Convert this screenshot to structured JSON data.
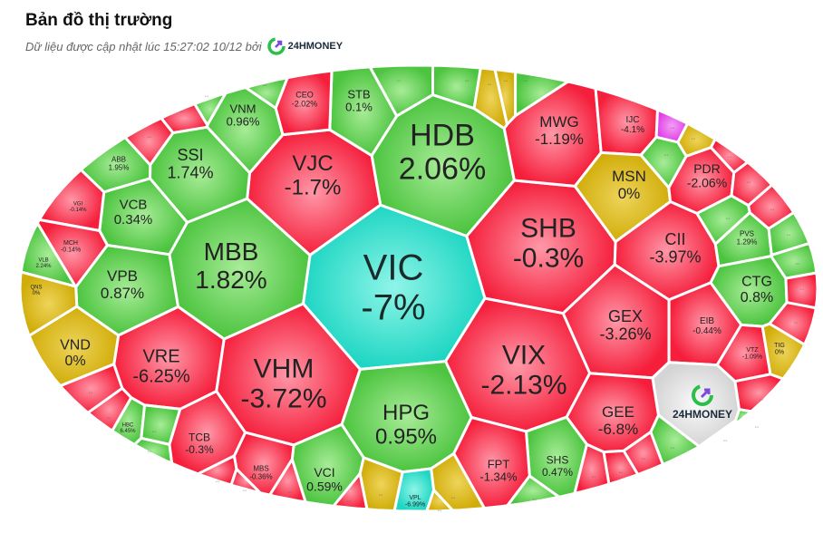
{
  "header": {
    "title": "Bản đồ thị trường",
    "updated_text": "Dữ liệu được cập nhật lúc 15:27:02 10/12 bởi",
    "brand": "24HMONEY"
  },
  "colors": {
    "up": "#4cc43f",
    "down": "#f51f3c",
    "flat": "#d1ad0a",
    "floor": "#1fd6c3",
    "ceiling": "#e03ce6",
    "brand": "#dddddd"
  },
  "cells": [
    {
      "ticker": "VIC",
      "change": "-7%",
      "color": "floor"
    },
    {
      "ticker": "HDB",
      "change": "2.06%",
      "color": "up"
    },
    {
      "ticker": "SHB",
      "change": "-0.3%",
      "color": "down"
    },
    {
      "ticker": "VIX",
      "change": "-2.13%",
      "color": "down"
    },
    {
      "ticker": "HPG",
      "change": "0.95%",
      "color": "up"
    },
    {
      "ticker": "VHM",
      "change": "-3.72%",
      "color": "down"
    },
    {
      "ticker": "MBB",
      "change": "1.82%",
      "color": "up"
    },
    {
      "ticker": "VJC",
      "change": "-1.7%",
      "color": "down"
    },
    {
      "ticker": "SSI",
      "change": "1.74%",
      "color": "up"
    },
    {
      "ticker": "VNM",
      "change": "0.96%",
      "color": "up"
    },
    {
      "ticker": "STB",
      "change": "0.1%",
      "color": "up"
    },
    {
      "ticker": "CEO",
      "change": "-2.02%",
      "color": "down"
    },
    {
      "ticker": "MWG",
      "change": "-1.19%",
      "color": "down"
    },
    {
      "ticker": "IJC",
      "change": "-4.1%",
      "color": "down"
    },
    {
      "ticker": "MSN",
      "change": "0%",
      "color": "flat"
    },
    {
      "ticker": "PDR",
      "change": "-2.06%",
      "color": "down"
    },
    {
      "ticker": "CII",
      "change": "-3.97%",
      "color": "down"
    },
    {
      "ticker": "PVS",
      "change": "1.29%",
      "color": "up"
    },
    {
      "ticker": "CTG",
      "change": "0.8%",
      "color": "up"
    },
    {
      "ticker": "GEX",
      "change": "-3.26%",
      "color": "down"
    },
    {
      "ticker": "EIB",
      "change": "-0.44%",
      "color": "down"
    },
    {
      "ticker": "VTZ",
      "change": "-1.09%",
      "color": "down"
    },
    {
      "ticker": "TIG",
      "change": "0%",
      "color": "flat"
    },
    {
      "ticker": "24HMONEY",
      "change": "",
      "color": "brand"
    },
    {
      "ticker": "GEE",
      "change": "-6.8%",
      "color": "down"
    },
    {
      "ticker": "SHS",
      "change": "0.47%",
      "color": "up"
    },
    {
      "ticker": "FPT",
      "change": "-1.34%",
      "color": "down"
    },
    {
      "ticker": "VPL",
      "change": "-6.99%",
      "color": "floor"
    },
    {
      "ticker": "VCI",
      "change": "0.59%",
      "color": "up"
    },
    {
      "ticker": "MBS",
      "change": "-0.36%",
      "color": "down"
    },
    {
      "ticker": "TCB",
      "change": "-0.3%",
      "color": "down"
    },
    {
      "ticker": "HBC",
      "change": "6.45%",
      "color": "up"
    },
    {
      "ticker": "VRE",
      "change": "-6.25%",
      "color": "down"
    },
    {
      "ticker": "VND",
      "change": "0%",
      "color": "flat"
    },
    {
      "ticker": "VPB",
      "change": "0.87%",
      "color": "up"
    },
    {
      "ticker": "VCB",
      "change": "0.34%",
      "color": "up"
    },
    {
      "ticker": "ABB",
      "change": "1.95%",
      "color": "up"
    },
    {
      "ticker": "VGI",
      "change": "-0.14%",
      "color": "down"
    },
    {
      "ticker": "MCH",
      "change": "-0.14%",
      "color": "down"
    },
    {
      "ticker": "VLB",
      "change": "2.24%",
      "color": "up"
    },
    {
      "ticker": "QNS",
      "change": "0%",
      "color": "flat"
    },
    {
      "ticker": "...",
      "change": "",
      "color": "down"
    },
    {
      "ticker": "...",
      "change": "",
      "color": "down"
    },
    {
      "ticker": "...",
      "change": "",
      "color": "up"
    },
    {
      "ticker": "...",
      "change": "",
      "color": "up"
    },
    {
      "ticker": "...",
      "change": "",
      "color": "up"
    },
    {
      "ticker": "...",
      "change": "",
      "color": "up"
    },
    {
      "ticker": "...",
      "change": "",
      "color": "flat"
    },
    {
      "ticker": "...",
      "change": "",
      "color": "flat"
    },
    {
      "ticker": "...",
      "change": "",
      "color": "up"
    },
    {
      "ticker": "...",
      "change": "",
      "color": "ceiling"
    },
    {
      "ticker": "...",
      "change": "",
      "color": "flat"
    },
    {
      "ticker": "...",
      "change": "",
      "color": "up"
    },
    {
      "ticker": "...",
      "change": "",
      "color": "down"
    },
    {
      "ticker": "...",
      "change": "",
      "color": "down"
    },
    {
      "ticker": "...",
      "change": "",
      "color": "down"
    },
    {
      "ticker": "...",
      "change": "",
      "color": "up"
    },
    {
      "ticker": "...",
      "change": "",
      "color": "up"
    },
    {
      "ticker": "...",
      "change": "",
      "color": "up"
    },
    {
      "ticker": "...",
      "change": "",
      "color": "down"
    },
    {
      "ticker": "...",
      "change": "",
      "color": "down"
    },
    {
      "ticker": "...",
      "change": "",
      "color": "down"
    },
    {
      "ticker": "...",
      "change": "",
      "color": "up"
    },
    {
      "ticker": "...",
      "change": "",
      "color": "down"
    },
    {
      "ticker": "...",
      "change": "",
      "color": "up"
    },
    {
      "ticker": "...",
      "change": "",
      "color": "down"
    },
    {
      "ticker": "...",
      "change": "",
      "color": "down"
    },
    {
      "ticker": "...",
      "change": "",
      "color": "down"
    },
    {
      "ticker": "...",
      "change": "",
      "color": "up"
    },
    {
      "ticker": "...",
      "change": "",
      "color": "flat"
    },
    {
      "ticker": "...",
      "change": "",
      "color": "flat"
    },
    {
      "ticker": "...",
      "change": "",
      "color": "flat"
    },
    {
      "ticker": "...",
      "change": "",
      "color": "down"
    },
    {
      "ticker": "...",
      "change": "",
      "color": "down"
    },
    {
      "ticker": "...",
      "change": "",
      "color": "down"
    },
    {
      "ticker": "...",
      "change": "",
      "color": "down"
    },
    {
      "ticker": "...",
      "change": "",
      "color": "up"
    },
    {
      "ticker": "...",
      "change": "",
      "color": "up"
    },
    {
      "ticker": "...",
      "change": "",
      "color": "down"
    },
    {
      "ticker": "...",
      "change": "",
      "color": "down"
    }
  ]
}
